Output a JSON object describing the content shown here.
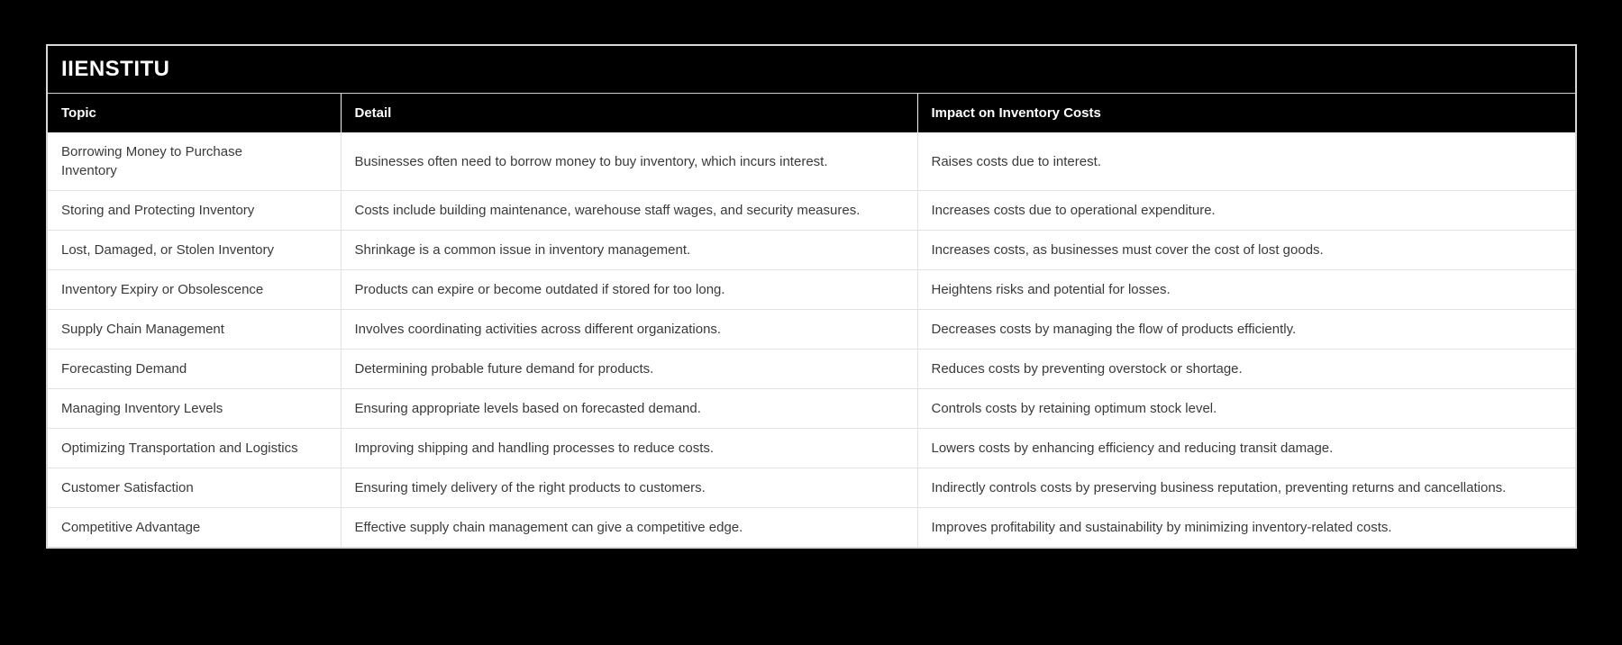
{
  "page": {
    "title_bar": "IIENSTITU"
  },
  "table": {
    "columns": [
      {
        "label": "Topic"
      },
      {
        "label": "Detail"
      },
      {
        "label": "Impact on Inventory Costs"
      }
    ],
    "rows": [
      {
        "topic": "Borrowing Money to Purchase Inventory",
        "detail": "Businesses often need to borrow money to buy inventory, which incurs interest.",
        "impact": "Raises costs due to interest."
      },
      {
        "topic": "Storing and Protecting Inventory",
        "detail": "Costs include building maintenance, warehouse staff wages, and security measures.",
        "impact": "Increases costs due to operational expenditure."
      },
      {
        "topic": "Lost, Damaged, or Stolen Inventory",
        "detail": "Shrinkage is a common issue in inventory management.",
        "impact": "Increases costs, as businesses must cover the cost of lost goods."
      },
      {
        "topic": "Inventory Expiry or Obsolescence",
        "detail": "Products can expire or become outdated if stored for too long.",
        "impact": "Heightens risks and potential for losses."
      },
      {
        "topic": "Supply Chain Management",
        "detail": "Involves coordinating activities across different organizations.",
        "impact": "Decreases costs by managing the flow of products efficiently."
      },
      {
        "topic": "Forecasting Demand",
        "detail": "Determining probable future demand for products.",
        "impact": "Reduces costs by preventing overstock or shortage."
      },
      {
        "topic": "Managing Inventory Levels",
        "detail": "Ensuring appropriate levels based on forecasted demand.",
        "impact": "Controls costs by retaining optimum stock level."
      },
      {
        "topic": "Optimizing Transportation and Logistics",
        "detail": "Improving shipping and handling processes to reduce costs.",
        "impact": "Lowers costs by enhancing efficiency and reducing transit damage."
      },
      {
        "topic": "Customer Satisfaction",
        "detail": "Ensuring timely delivery of the right products to customers.",
        "impact": "Indirectly controls costs by preserving business reputation, preventing returns and cancellations."
      },
      {
        "topic": "Competitive Advantage",
        "detail": "Effective supply chain management can give a competitive edge.",
        "impact": "Improves profitability and sustainability by minimizing inventory-related costs."
      }
    ]
  },
  "colors": {
    "page_background": "#000000",
    "panel_border": "#d8d8d8",
    "header_background": "#000000",
    "header_text": "#ffffff",
    "body_background": "#ffffff",
    "body_text": "#3a3a3a",
    "divider": "#e2e2e2"
  }
}
